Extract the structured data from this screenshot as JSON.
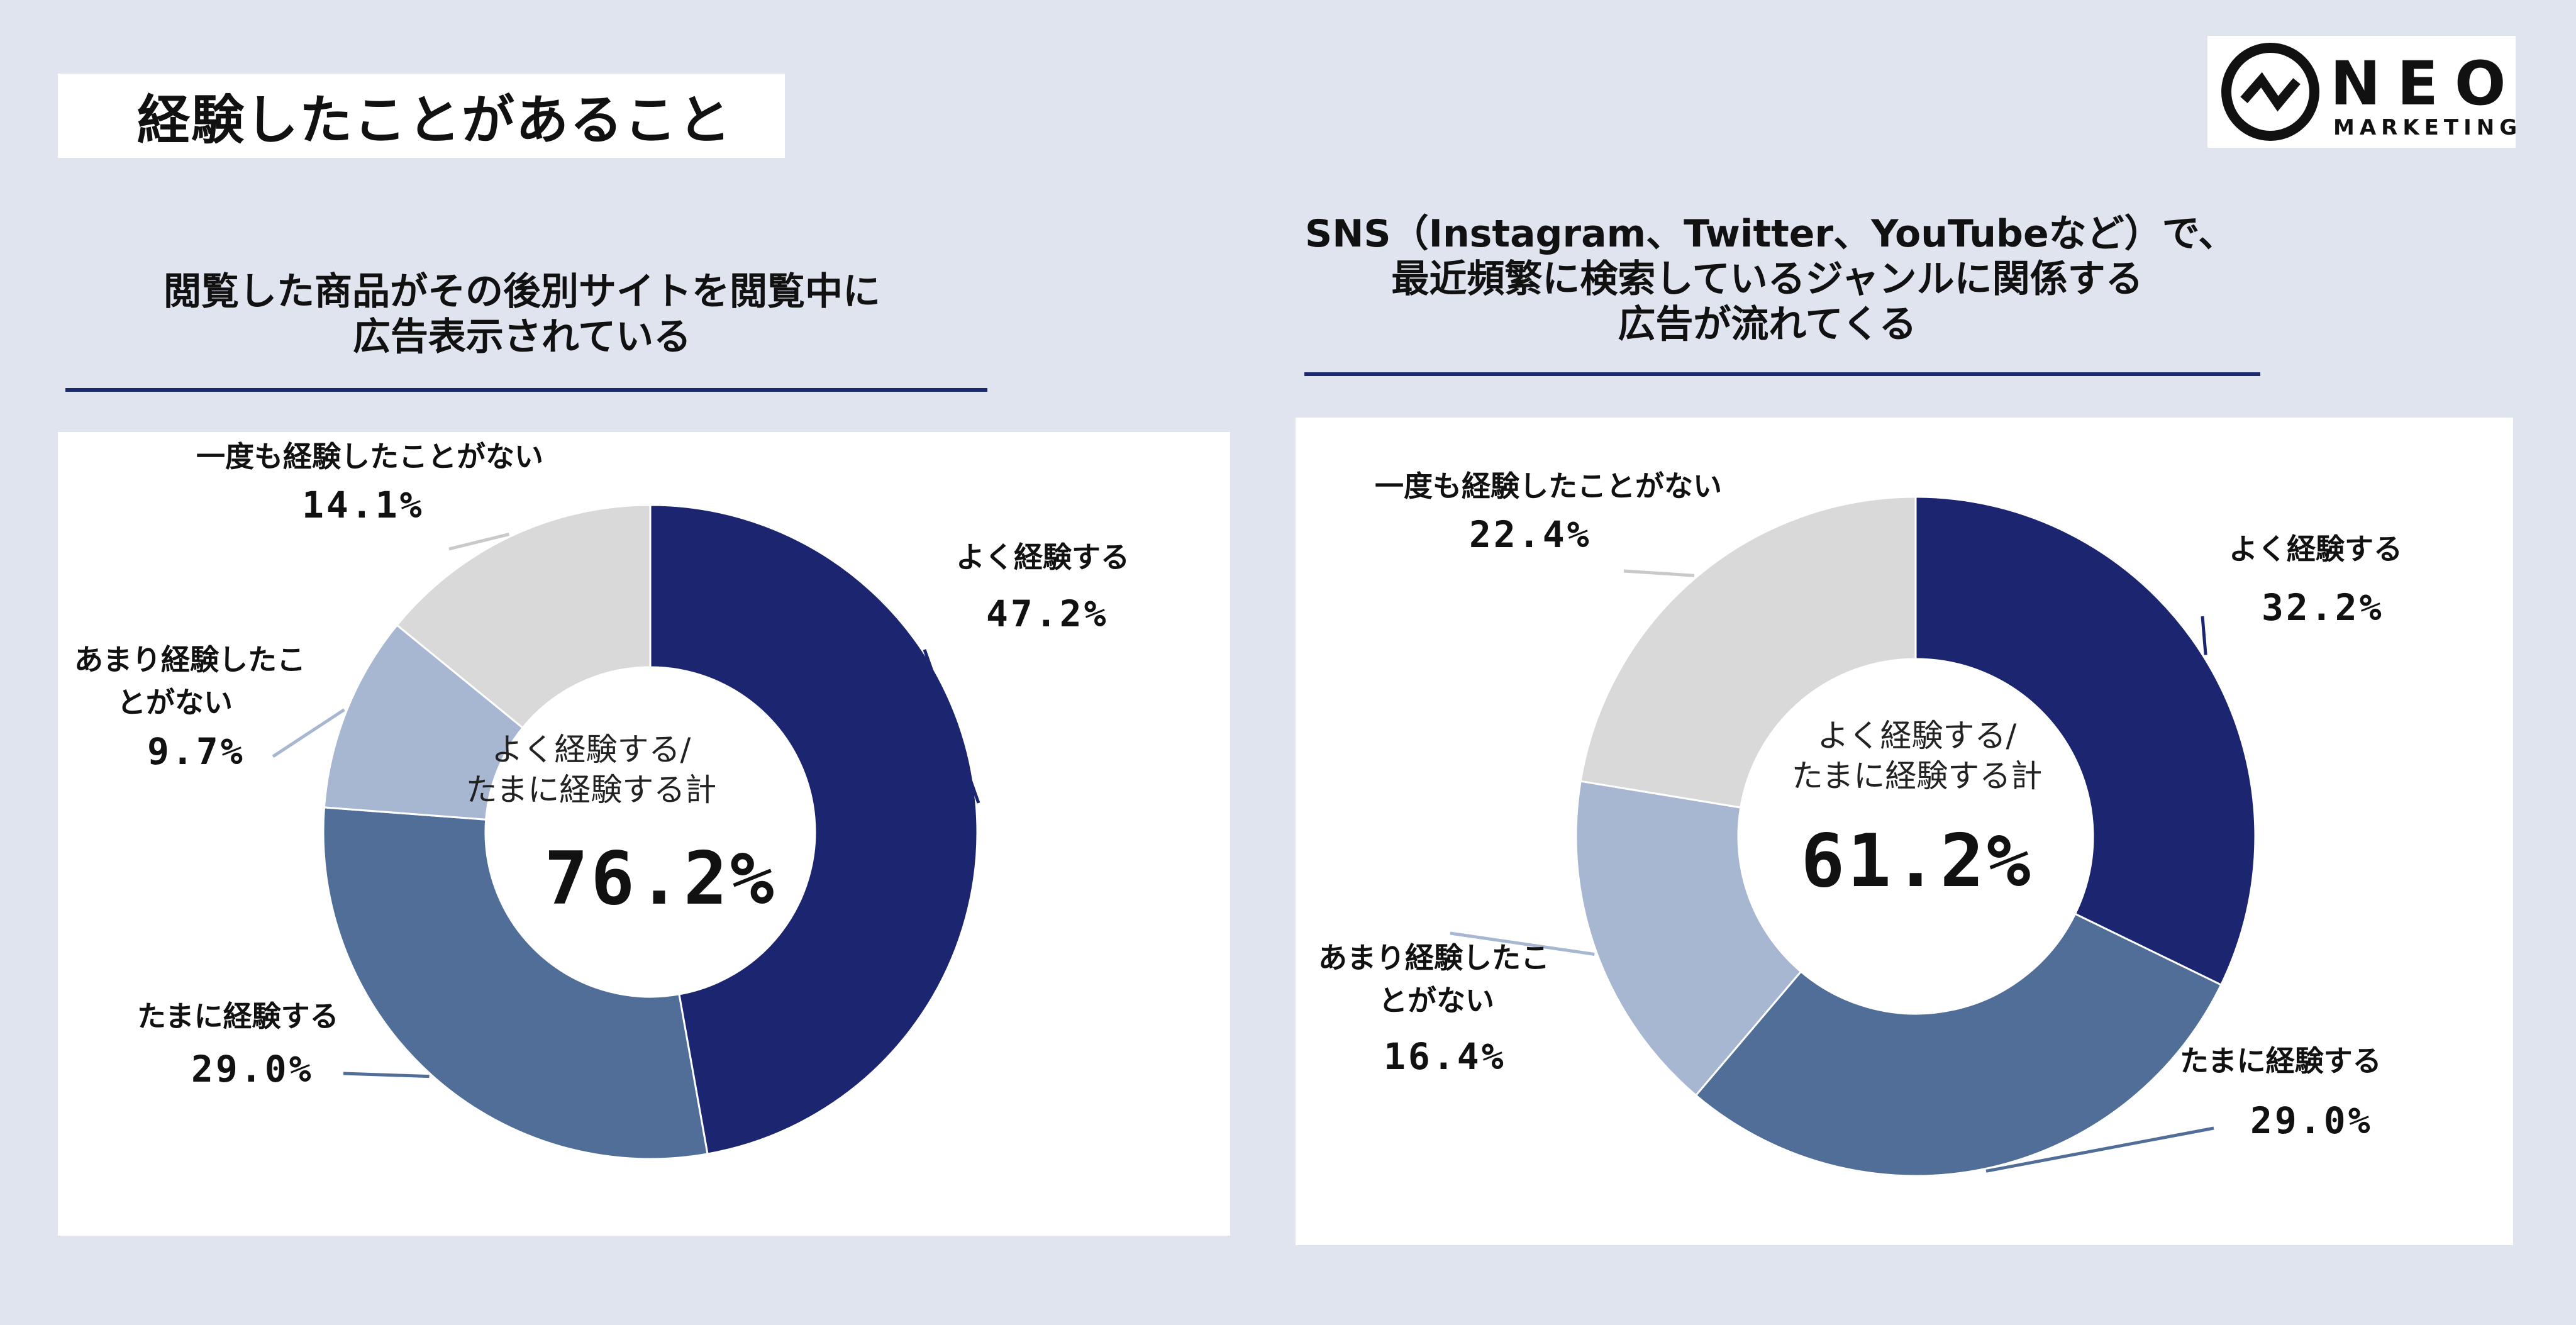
{
  "page": {
    "title": "経験したことがあること"
  },
  "logo": {
    "word": "NEO",
    "sub": "MARKETING"
  },
  "colors": {
    "often": "#1c2570",
    "sometimes": "#516e98",
    "rarely": "#a7b7d1",
    "never": "#d9d9d9",
    "rule": "#1b2a6b"
  },
  "chart_data": [
    {
      "type": "pie",
      "title_lines": [
        "閲覧した商品がその後別サイトを閲覧中に",
        "広告表示されている"
      ],
      "categories": [
        "よく経験する",
        "たまに経験する",
        "あまり経験したことがない",
        "一度も経験したことがない"
      ],
      "values": [
        47.2,
        29.0,
        9.7,
        14.1
      ],
      "value_labels": [
        "47.2%",
        "29.0%",
        "9.7%",
        "14.1%"
      ],
      "center_label_lines": [
        "よく経験する/",
        "たまに経験する計"
      ],
      "center_value": "76.2%",
      "donut": true
    },
    {
      "type": "pie",
      "title_lines": [
        "SNS（Instagram、Twitter、YouTubeなど）で、",
        "最近頻繁に検索しているジャンルに関係する",
        "広告が流れてくる"
      ],
      "categories": [
        "よく経験する",
        "たまに経験する",
        "あまり経験したことがない",
        "一度も経験したことがない"
      ],
      "values": [
        32.2,
        29.0,
        16.4,
        22.4
      ],
      "value_labels": [
        "32.2%",
        "29.0%",
        "16.4%",
        "22.4%"
      ],
      "center_label_lines": [
        "よく経験する/",
        "たまに経験する計"
      ],
      "center_value": "61.2%",
      "donut": true
    }
  ],
  "labels": {
    "c1": {
      "often": "よく経験する",
      "sometimes": "たまに経験する",
      "rarely_line1": "あまり経験したこ",
      "rarely_line2": "とがない",
      "never": "一度も経験したことがない"
    },
    "c2": {
      "often": "よく経験する",
      "sometimes": "たまに経験する",
      "rarely_line1": "あまり経験したこ",
      "rarely_line2": "とがない",
      "never": "一度も経験したことがない"
    }
  }
}
